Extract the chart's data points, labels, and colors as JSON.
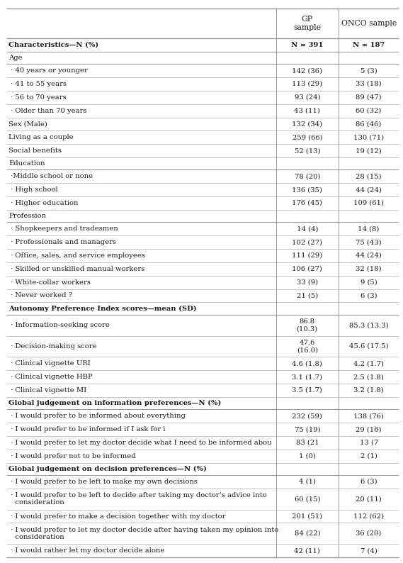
{
  "col_header_1": "GP\nsample",
  "col_header_2": "ONCO sample",
  "rows": [
    {
      "label": "Characteristics—N (%)",
      "gp": "N = 391",
      "onco": "N = 187",
      "bold": true,
      "type": "header_row"
    },
    {
      "label": "Age",
      "gp": "",
      "onco": "",
      "bold": false,
      "type": "section"
    },
    {
      "label": " · 40 years or younger",
      "gp": "142 (36)",
      "onco": "5 (3)",
      "bold": false,
      "type": "data"
    },
    {
      "label": " · 41 to 55 years",
      "gp": "113 (29)",
      "onco": "33 (18)",
      "bold": false,
      "type": "data"
    },
    {
      "label": " · 56 to 70 years",
      "gp": "93 (24)",
      "onco": "89 (47)",
      "bold": false,
      "type": "data"
    },
    {
      "label": " · Older than 70 years",
      "gp": "43 (11)",
      "onco": "60 (32)",
      "bold": false,
      "type": "data"
    },
    {
      "label": "Sex (Male)",
      "gp": "132 (34)",
      "onco": "86 (46)",
      "bold": false,
      "type": "data"
    },
    {
      "label": "Living as a couple",
      "gp": "259 (66)",
      "onco": "130 (71)",
      "bold": false,
      "type": "data"
    },
    {
      "label": "Social benefits",
      "gp": "52 (13)",
      "onco": "19 (12)",
      "bold": false,
      "type": "data"
    },
    {
      "label": "Education",
      "gp": "",
      "onco": "",
      "bold": false,
      "type": "section"
    },
    {
      "label": " ·Middle school or none",
      "gp": "78 (20)",
      "onco": "28 (15)",
      "bold": false,
      "type": "data"
    },
    {
      "label": " · High school",
      "gp": "136 (35)",
      "onco": "44 (24)",
      "bold": false,
      "type": "data"
    },
    {
      "label": " · Higher education",
      "gp": "176 (45)",
      "onco": "109 (61)",
      "bold": false,
      "type": "data"
    },
    {
      "label": "Profession",
      "gp": "",
      "onco": "",
      "bold": false,
      "type": "section"
    },
    {
      "label": " · Shopkeepers and tradesmen",
      "gp": "14 (4)",
      "onco": "14 (8)",
      "bold": false,
      "type": "data"
    },
    {
      "label": " · Professionals and managers",
      "gp": "102 (27)",
      "onco": "75 (43)",
      "bold": false,
      "type": "data"
    },
    {
      "label": " · Office, sales, and service employees",
      "gp": "111 (29)",
      "onco": "44 (24)",
      "bold": false,
      "type": "data"
    },
    {
      "label": " · Skilled or unskilled manual workers",
      "gp": "106 (27)",
      "onco": "32 (18)",
      "bold": false,
      "type": "data"
    },
    {
      "label": " · White-collar workers",
      "gp": "33 (9)",
      "onco": "9 (5)",
      "bold": false,
      "type": "data"
    },
    {
      "label": " · Never worked ?",
      "gp": "21 (5)",
      "onco": "6 (3)",
      "bold": false,
      "type": "data"
    },
    {
      "label": "Autonomy Preference Index scores—mean (SD)",
      "gp": "",
      "onco": "",
      "bold": true,
      "type": "section"
    },
    {
      "label": " · Information-seeking score",
      "gp": "86.8\n(10.3)",
      "onco": "85.3 (13.3)",
      "bold": false,
      "type": "data_ml"
    },
    {
      "label": " · Decision-making score",
      "gp": "47.6\n(16.0)",
      "onco": "45.6 (17.5)",
      "bold": false,
      "type": "data_ml"
    },
    {
      "label": " · Clinical vignette URI",
      "gp": "4.6 (1.8)",
      "onco": "4.2 (1.7)",
      "bold": false,
      "type": "data"
    },
    {
      "label": " · Clinical vignette HBP",
      "gp": "3.1 (1.7)",
      "onco": "2.5 (1.8)",
      "bold": false,
      "type": "data"
    },
    {
      "label": " · Clinical vignette MI",
      "gp": "3.5 (1.7)",
      "onco": "3.2 (1.8)",
      "bold": false,
      "type": "data"
    },
    {
      "label": "Global judgement on information preferences—N (%)",
      "gp": "",
      "onco": "",
      "bold": true,
      "type": "section"
    },
    {
      "label": " · I would prefer to be informed about everything",
      "gp": "232 (59)",
      "onco": "138 (76)",
      "bold": false,
      "type": "data"
    },
    {
      "label": " · I would prefer to be informed if I ask for i",
      "gp": "75 (19)",
      "onco": "29 (16)",
      "bold": false,
      "type": "data"
    },
    {
      "label": " · I would prefer to let my doctor decide what I need to be informed abou",
      "gp": "83 (21",
      "onco": "13 (7",
      "bold": false,
      "type": "data"
    },
    {
      "label": " · I would prefer not to be informed",
      "gp": "1 (0)",
      "onco": "2 (1)",
      "bold": false,
      "type": "data"
    },
    {
      "label": "Global judgement on decision preferences—N (%)",
      "gp": "",
      "onco": "",
      "bold": true,
      "type": "section"
    },
    {
      "label": " · I would prefer to be left to make my own decisions",
      "gp": "4 (1)",
      "onco": "6 (3)",
      "bold": false,
      "type": "data"
    },
    {
      "label": " · I would prefer to be left to decide after taking my doctor’s advice into\n   consideration",
      "gp": "60 (15)",
      "onco": "20 (11)",
      "bold": false,
      "type": "data_ml"
    },
    {
      "label": " · I would prefer to make a decision together with my doctor",
      "gp": "201 (51)",
      "onco": "112 (62)",
      "bold": false,
      "type": "data"
    },
    {
      "label": " · I would prefer to let my doctor decide after having taken my opinion into\n   consideration",
      "gp": "84 (22)",
      "onco": "36 (20)",
      "bold": false,
      "type": "data_ml"
    },
    {
      "label": " · I would rather let my doctor decide alone",
      "gp": "42 (11)",
      "onco": "7 (4)",
      "bold": false,
      "type": "data"
    }
  ],
  "bg_color": "#ffffff",
  "text_color": "#1a1a1a",
  "line_color": "#999999",
  "font_size": 7.2,
  "header_font_size": 7.8
}
